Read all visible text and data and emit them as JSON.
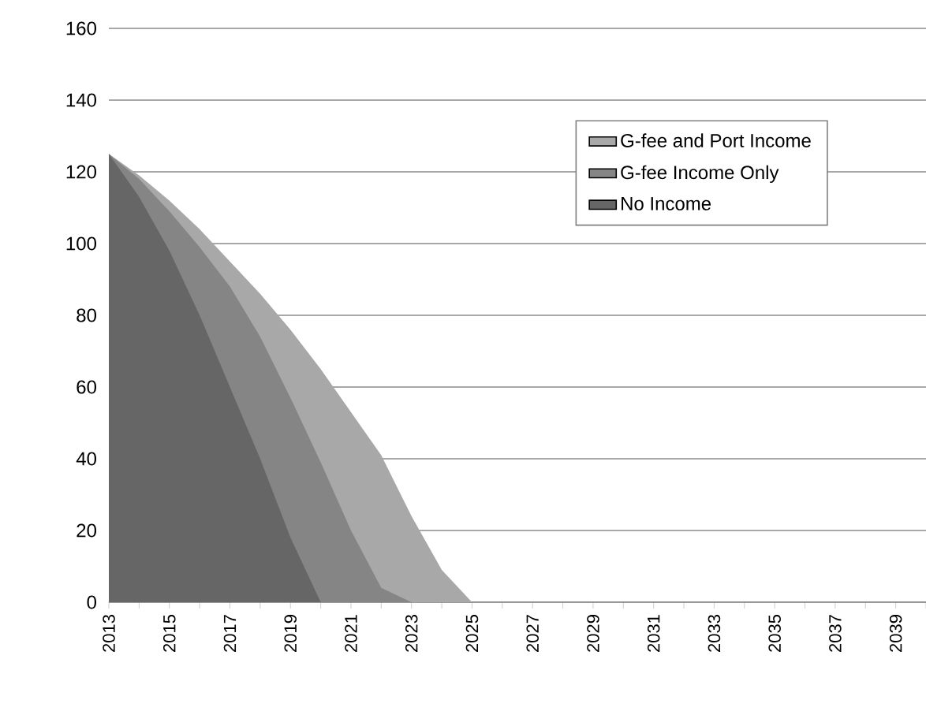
{
  "chart_data": {
    "type": "area",
    "categories": [
      "2013",
      null,
      "2015",
      null,
      "2017",
      null,
      "2019",
      null,
      "2021",
      null,
      "2023",
      null,
      "2025",
      null,
      "2027",
      null,
      "2029",
      null,
      "2031",
      null,
      "2033",
      null,
      "2035",
      null,
      "2037",
      null,
      "2039",
      null
    ],
    "series": [
      {
        "name": "G-fee and Port Income",
        "color": "#a8a8a8",
        "values": [
          125,
          119,
          112,
          104,
          95,
          86,
          76,
          65,
          53,
          41,
          24,
          9,
          0,
          0,
          0,
          0,
          0,
          0,
          0,
          0,
          0,
          0,
          0,
          0,
          0,
          0,
          0,
          0
        ]
      },
      {
        "name": "G-fee Income Only",
        "color": "#858585",
        "values": [
          125,
          118,
          109,
          99,
          88,
          74,
          57,
          39,
          20,
          4,
          0,
          null,
          null,
          null,
          null,
          null,
          null,
          null,
          null,
          null,
          null,
          null,
          null,
          null,
          null,
          null,
          null,
          null
        ]
      },
      {
        "name": "No Income",
        "color": "#666666",
        "values": [
          125,
          113,
          98,
          80,
          60,
          40,
          18,
          0,
          null,
          null,
          null,
          null,
          null,
          null,
          null,
          null,
          null,
          null,
          null,
          null,
          null,
          null,
          null,
          null,
          null,
          null,
          null,
          null
        ]
      }
    ],
    "ylim": [
      0,
      160
    ],
    "yticks": [
      0,
      20,
      40,
      60,
      80,
      100,
      120,
      140,
      160
    ],
    "grid": "y",
    "legend": "top right"
  }
}
